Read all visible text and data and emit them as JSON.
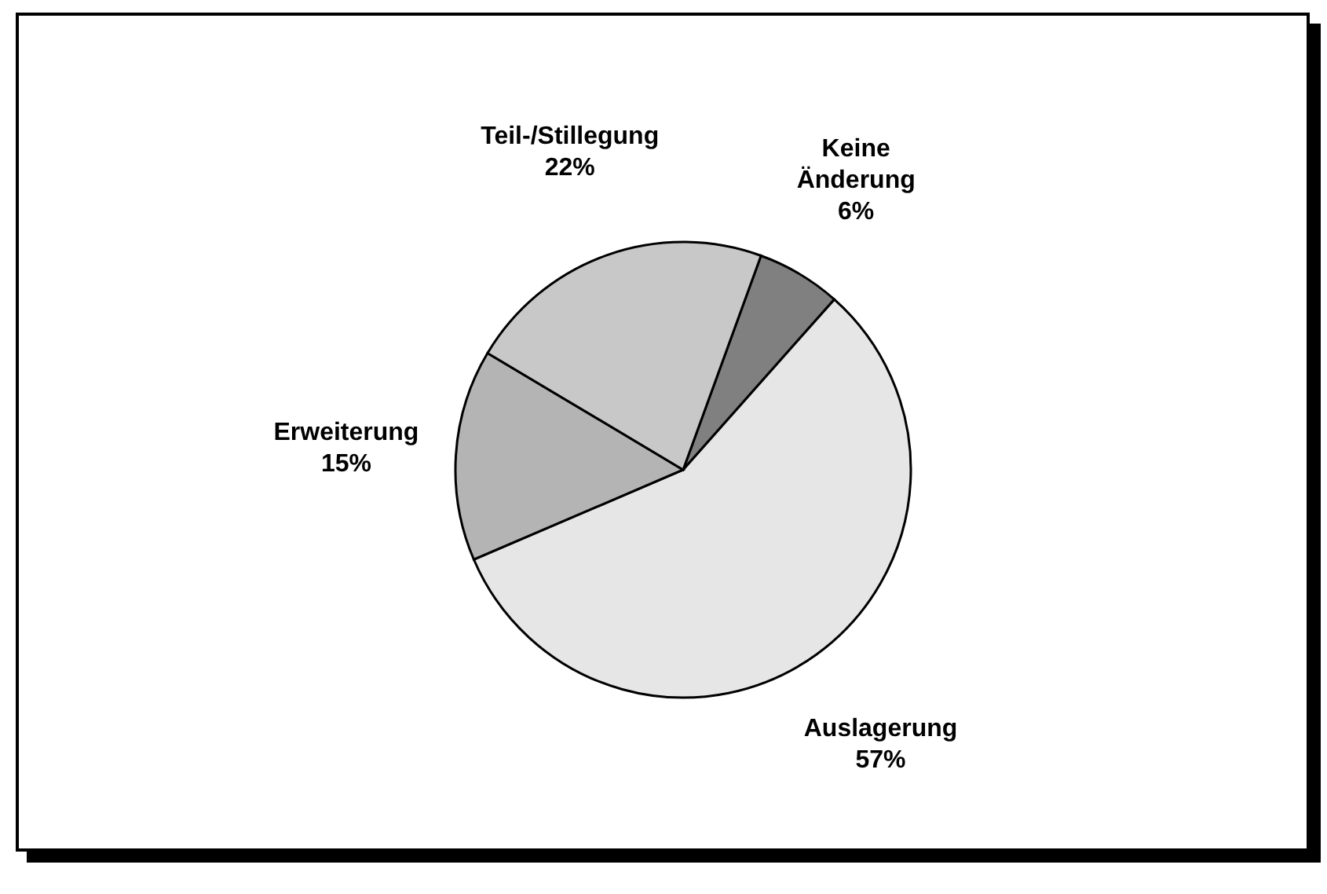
{
  "chart_data": {
    "type": "pie",
    "categories": [
      "Keine Änderung",
      "Auslagerung",
      "Erweiterung",
      "Teil-/Stillegung"
    ],
    "values": [
      6,
      57,
      15,
      22
    ],
    "colors": [
      "#808080",
      "#e6e6e6",
      "#b4b4b4",
      "#c8c8c8"
    ],
    "value_labels": [
      "6%",
      "57%",
      "15%",
      "22%"
    ],
    "legend": false
  }
}
